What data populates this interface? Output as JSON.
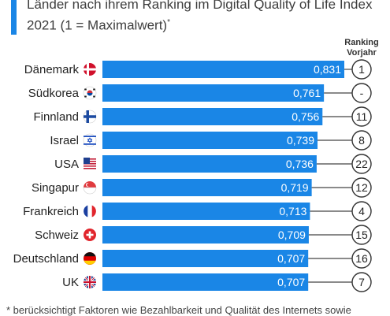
{
  "title": "Länder nach ihrem Ranking im Digital Quality of Life Index 2021 (1 = Maximalwert)",
  "title_note_mark": "*",
  "rank_header": "Ranking Vorjahr",
  "footnote": "* berücksichtigt Faktoren wie Bezahlbarkeit und Qualität des Internets sowie",
  "colors": {
    "bar": "#1a86e6",
    "accent": "#1a86e6",
    "circle_stroke": "#333333"
  },
  "chart_data": {
    "type": "bar",
    "orientation": "horizontal",
    "title": "Länder nach ihrem Ranking im Digital Quality of Life Index 2021 (1 = Maximalwert)",
    "categories": [
      "Dänemark",
      "Südkorea",
      "Finnland",
      "Israel",
      "USA",
      "Singapur",
      "Frankreich",
      "Schweiz",
      "Deutschland",
      "UK"
    ],
    "values": [
      0.831,
      0.761,
      0.756,
      0.739,
      0.736,
      0.719,
      0.713,
      0.709,
      0.707,
      0.707
    ],
    "value_labels": [
      "0,831",
      "0,761",
      "0,756",
      "0,739",
      "0,736",
      "0,719",
      "0,713",
      "0,709",
      "0,707",
      "0,707"
    ],
    "previous_rank": [
      "1",
      "-",
      "11",
      "8",
      "22",
      "12",
      "4",
      "15",
      "16",
      "7"
    ],
    "flags": [
      "flag-denmark",
      "flag-south-korea",
      "flag-finland",
      "flag-israel",
      "flag-usa",
      "flag-singapore",
      "flag-france",
      "flag-switzerland",
      "flag-germany",
      "flag-uk"
    ],
    "xlim": [
      0,
      0.831
    ],
    "grid": false
  }
}
